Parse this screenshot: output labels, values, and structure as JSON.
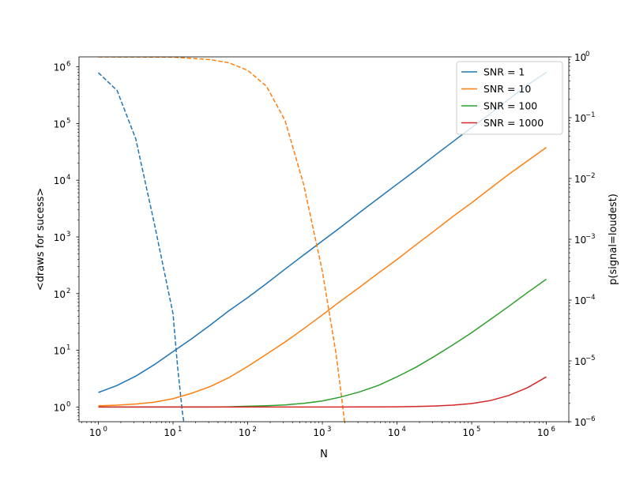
{
  "chart_data": {
    "type": "line",
    "xlabel": "N",
    "ylabel": "<draws for sucess>",
    "ylabel_right": "p(signal=loudest)",
    "xscale": "log",
    "yscale": "log",
    "yscale_right": "log",
    "xlim": [
      0.55,
      2000000
    ],
    "ylim": [
      0.55,
      1500000
    ],
    "ylim_right": [
      1e-06,
      1
    ],
    "x_ticks": [
      1,
      10,
      100,
      1000,
      10000,
      100000,
      1000000
    ],
    "x_tick_labels": [
      {
        "base": "10",
        "exp": "0"
      },
      {
        "base": "10",
        "exp": "1"
      },
      {
        "base": "10",
        "exp": "2"
      },
      {
        "base": "10",
        "exp": "3"
      },
      {
        "base": "10",
        "exp": "4"
      },
      {
        "base": "10",
        "exp": "5"
      },
      {
        "base": "10",
        "exp": "6"
      }
    ],
    "y_ticks": [
      1,
      10,
      100,
      1000,
      10000,
      100000,
      1000000
    ],
    "y_tick_labels": [
      {
        "base": "10",
        "exp": "0"
      },
      {
        "base": "10",
        "exp": "1"
      },
      {
        "base": "10",
        "exp": "2"
      },
      {
        "base": "10",
        "exp": "3"
      },
      {
        "base": "10",
        "exp": "4"
      },
      {
        "base": "10",
        "exp": "5"
      },
      {
        "base": "10",
        "exp": "6"
      }
    ],
    "y_ticks_right": [
      1e-06,
      1e-05,
      0.0001,
      0.001,
      0.01,
      0.1,
      1
    ],
    "y_tick_labels_right": [
      {
        "base": "10",
        "exp": "−6"
      },
      {
        "base": "10",
        "exp": "−5"
      },
      {
        "base": "10",
        "exp": "−4"
      },
      {
        "base": "10",
        "exp": "−3"
      },
      {
        "base": "10",
        "exp": "−2"
      },
      {
        "base": "10",
        "exp": "−1"
      },
      {
        "base": "10",
        "exp": "0"
      }
    ],
    "legend_position": "top-right",
    "grid": false,
    "x": [
      1,
      1.78,
      3.16,
      5.62,
      10,
      17.8,
      31.6,
      56.2,
      100,
      178,
      316,
      562,
      1000,
      1780,
      3160,
      5620,
      10000,
      17800,
      31600,
      56200,
      100000,
      178000,
      316000,
      562000,
      1000000
    ],
    "series": [
      {
        "name": "SNR = 1",
        "color": "#1f77b4",
        "draws": [
          1.8,
          2.4,
          3.5,
          5.6,
          9.5,
          16,
          28,
          50,
          85,
          150,
          270,
          480,
          850,
          1500,
          2700,
          4800,
          8500,
          15000,
          27000,
          48000,
          85000,
          150000,
          270000,
          480000,
          800000
        ],
        "p_x": [
          1,
          1.78,
          3.16,
          5.62,
          10,
          11.5,
          13.3,
          14.5
        ],
        "p_loudest": [
          0.55,
          0.28,
          0.045,
          0.0018,
          6e-05,
          8e-06,
          1.5e-06,
          7e-07
        ]
      },
      {
        "name": "SNR = 10",
        "color": "#ff7f0e",
        "draws": [
          1.05,
          1.08,
          1.13,
          1.22,
          1.4,
          1.75,
          2.3,
          3.3,
          5.2,
          8.5,
          14,
          24,
          42,
          75,
          130,
          230,
          400,
          720,
          1280,
          2300,
          4000,
          7200,
          12800,
          22000,
          38000
        ],
        "p_x": [
          1,
          10,
          31.6,
          56.2,
          100,
          178,
          316,
          562,
          1000,
          1500,
          1780,
          2000
        ],
        "p_loudest": [
          1,
          0.99,
          0.9,
          0.8,
          0.6,
          0.33,
          0.09,
          0.008,
          0.0003,
          1.5e-05,
          3e-06,
          9e-07
        ]
      },
      {
        "name": "SNR = 100",
        "color": "#2ca02c",
        "draws": [
          1,
          1,
          1,
          1,
          1,
          1,
          1,
          1.01,
          1.03,
          1.05,
          1.09,
          1.16,
          1.28,
          1.5,
          1.85,
          2.4,
          3.4,
          5.0,
          7.8,
          12.5,
          20.5,
          35,
          60,
          105,
          180
        ],
        "p_x": [],
        "p_loudest": []
      },
      {
        "name": "SNR = 1000",
        "color": "#d62728",
        "draws": [
          1,
          1,
          1,
          1,
          1,
          1,
          1,
          1,
          1,
          1,
          1,
          1,
          1,
          1,
          1.002,
          1.005,
          1.01,
          1.02,
          1.04,
          1.08,
          1.15,
          1.3,
          1.6,
          2.2,
          3.4
        ],
        "p_x": [],
        "p_loudest": []
      }
    ]
  }
}
